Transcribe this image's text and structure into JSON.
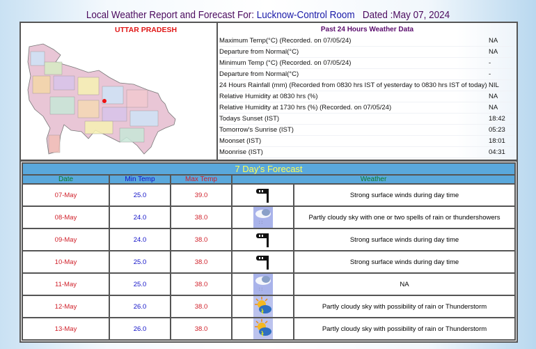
{
  "header": {
    "prefix": "Local Weather Report and Forecast For:",
    "location": "Lucknow-Control Room",
    "dated": "Dated :May 07, 2024"
  },
  "map": {
    "title": "UTTAR PRADESH"
  },
  "past24": {
    "title": "Past 24 Hours Weather Data",
    "rows": [
      {
        "label": "Maximum Temp(°C) (Recorded. on 07/05/24)",
        "value": "NA"
      },
      {
        "label": "Departure from Normal(°C)",
        "value": "NA"
      },
      {
        "label": "Minimum Temp (°C) (Recorded. on 07/05/24)",
        "value": "-"
      },
      {
        "label": "Departure from Normal(°C)",
        "value": "-"
      },
      {
        "label": "24 Hours Rainfall (mm) (Recorded from 0830 hrs IST of yesterday to 0830 hrs IST of today)",
        "value": "NIL"
      },
      {
        "label": "Relative Humidity at 0830 hrs (%)",
        "value": "NA"
      },
      {
        "label": "Relative Humidity at 1730 hrs (%) (Recorded. on 07/05/24)",
        "value": "NA"
      },
      {
        "label": "Todays Sunset (IST)",
        "value": "18:42"
      },
      {
        "label": "Tomorrow's Sunrise (IST)",
        "value": "05:23"
      },
      {
        "label": "Moonset (IST)",
        "value": "18:01"
      },
      {
        "label": "Moonrise (IST)",
        "value": "04:31"
      }
    ]
  },
  "forecast": {
    "title": "7 Day's Forecast",
    "columns": {
      "date": "Date",
      "min": "Min Temp",
      "max": "Max Temp",
      "weather": "Weather"
    },
    "rows": [
      {
        "date": "07-May",
        "min": "25.0",
        "max": "39.0",
        "icon": "wind-icon",
        "weather": "Strong surface winds during day time"
      },
      {
        "date": "08-May",
        "min": "24.0",
        "max": "38.0",
        "icon": "cloud-rain-icon",
        "weather": "Partly cloudy sky with one or two spells of rain or thundershowers"
      },
      {
        "date": "09-May",
        "min": "24.0",
        "max": "38.0",
        "icon": "wind-icon",
        "weather": "Strong surface winds during day time"
      },
      {
        "date": "10-May",
        "min": "25.0",
        "max": "38.0",
        "icon": "wind-icon",
        "weather": "Strong surface winds during day time"
      },
      {
        "date": "11-May",
        "min": "25.0",
        "max": "38.0",
        "icon": "cloud-rain-icon",
        "weather": "NA"
      },
      {
        "date": "12-May",
        "min": "26.0",
        "max": "38.0",
        "icon": "sun-thunder-cloud-icon",
        "weather": "Partly cloudy sky with possibility of rain or Thunderstorm"
      },
      {
        "date": "13-May",
        "min": "26.0",
        "max": "38.0",
        "icon": "sun-thunder-cloud-icon",
        "weather": "Partly cloudy sky with possibility of rain or Thunderstorm"
      }
    ]
  }
}
